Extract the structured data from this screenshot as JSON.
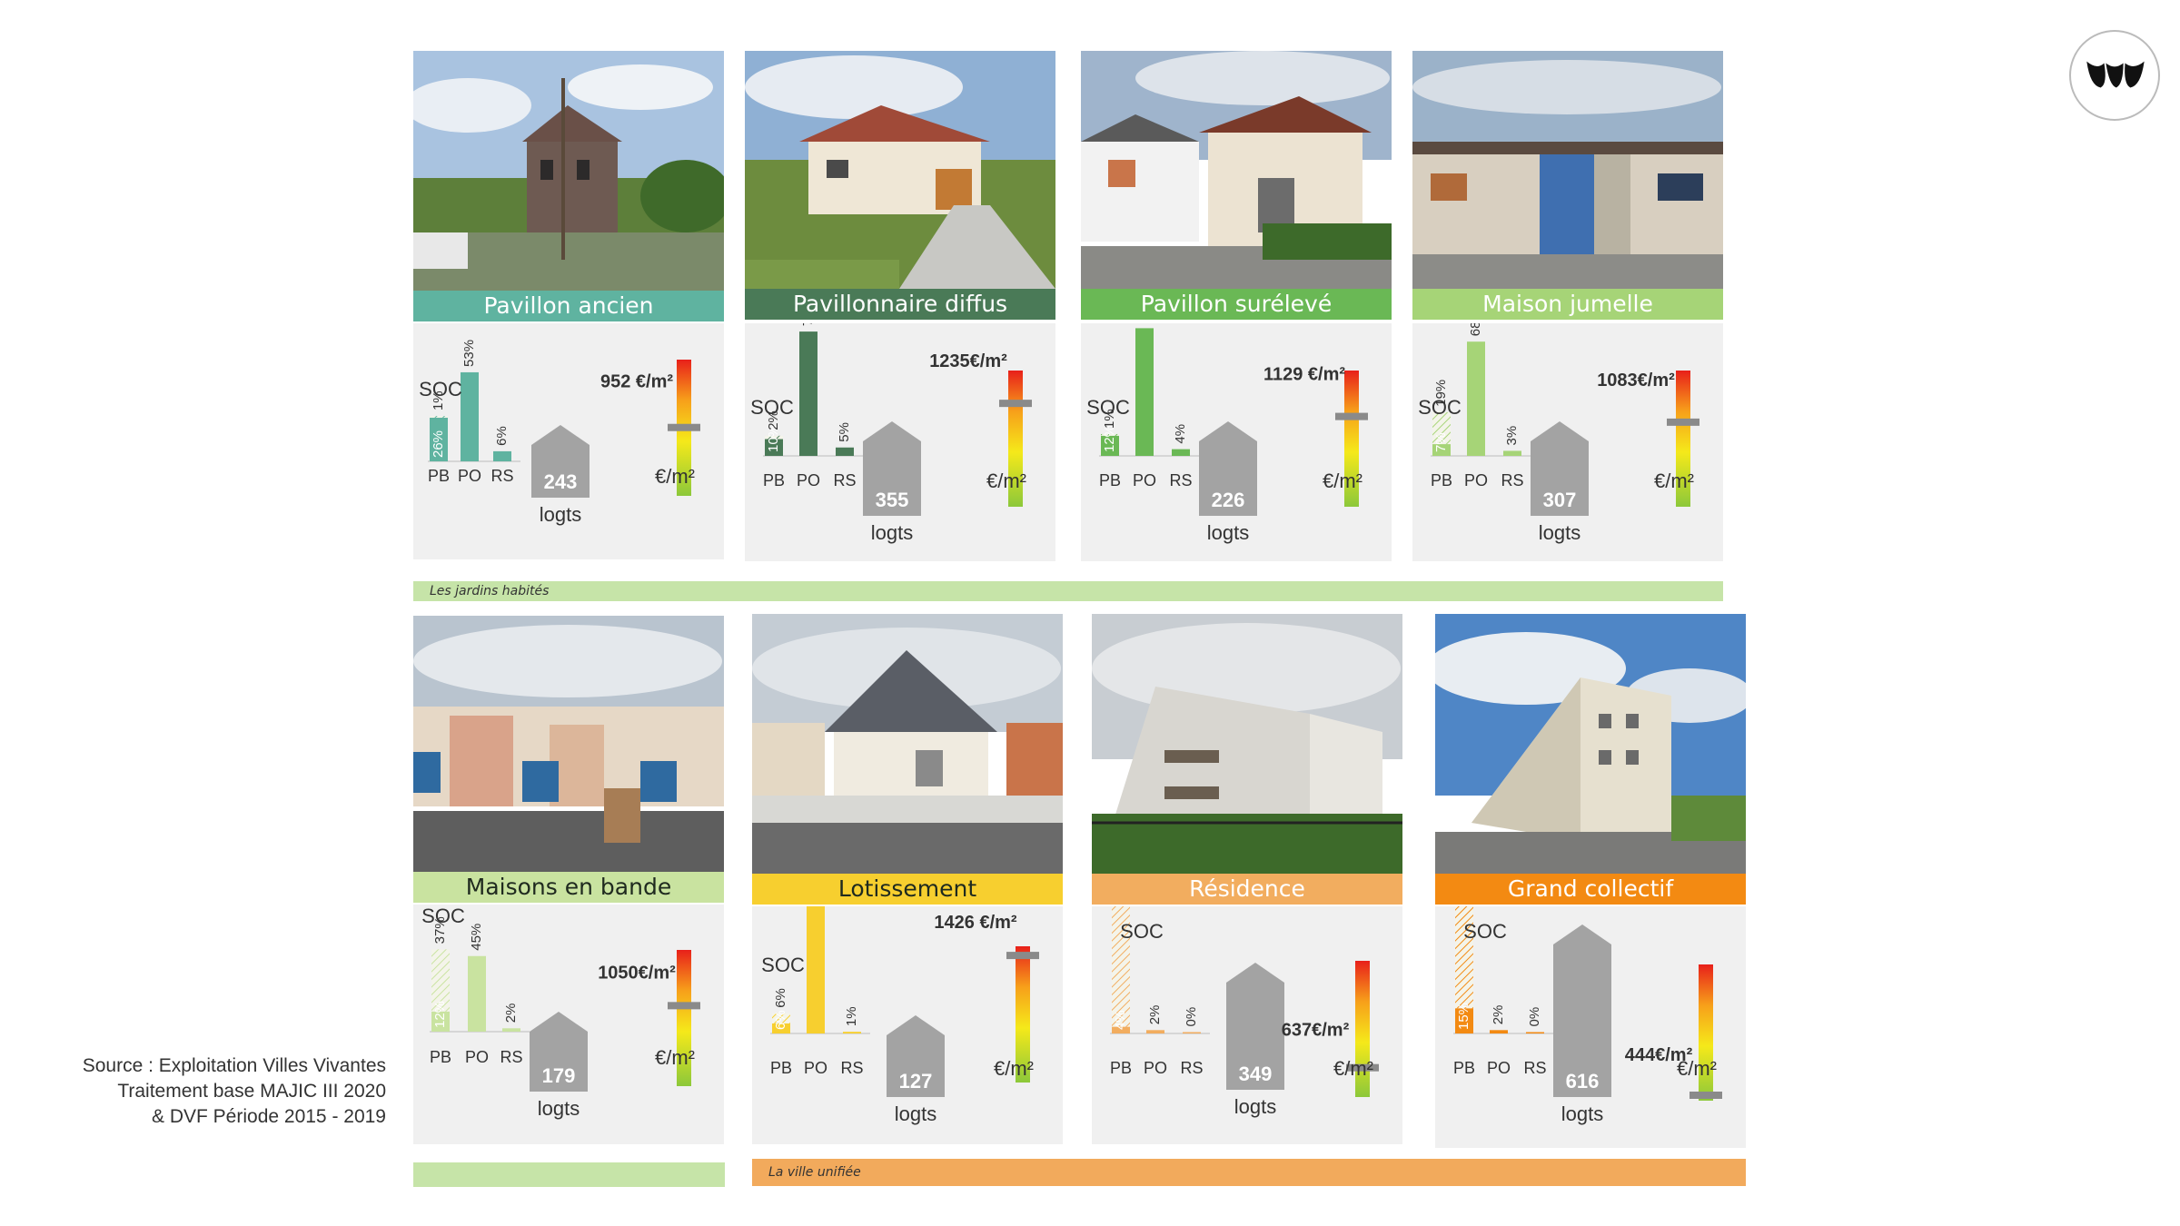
{
  "source": [
    "Source : Exploitation Villes Vivantes",
    "Traitement base MAJIC III 2020",
    "& DVF Période 2015 - 2019"
  ],
  "bands": {
    "jardins": "Les jardins habités",
    "ville": "La ville unifiée"
  },
  "labels": {
    "soc": "SOC",
    "pb": "PB",
    "po": "PO",
    "rs": "RS",
    "logts": "logts",
    "eurm2": "€/m²"
  },
  "colors": {
    "teal": "#5fb3a0",
    "dark_green": "#4a7a57",
    "green": "#6ab855",
    "light_green": "#a6d477",
    "pale_green": "#c9e3a0",
    "yellow": "#f7cf2f",
    "light_orange": "#f2ad5f",
    "orange": "#f38a12",
    "house_grey": "#a3a3a3",
    "panel_bg": "#f0f0f0",
    "band_green": "#c6e4a8",
    "band_orange": "#f2aa5c"
  },
  "chart_data": [
    {
      "type": "bar",
      "title": "Pavillon ancien",
      "categories": [
        "PB",
        "PO",
        "RS"
      ],
      "values": [
        26,
        53,
        6
      ],
      "pb_soc": 1,
      "logements": 243,
      "price_label": "952 €/m²",
      "price_eur_m2": 952
    },
    {
      "type": "bar",
      "title": "Pavillonnaire diffus",
      "categories": [
        "PB",
        "PO",
        "RS"
      ],
      "values": [
        10,
        74,
        5
      ],
      "pb_soc": 2,
      "logements": 355,
      "price_label": "1235€/m²",
      "price_eur_m2": 1235
    },
    {
      "type": "bar",
      "title": "Pavillon surélevé",
      "categories": [
        "PB",
        "PO",
        "RS"
      ],
      "values": [
        12,
        76,
        4
      ],
      "pb_soc": 1,
      "logements": 226,
      "price_label": "1129 €/m²",
      "price_eur_m2": 1129
    },
    {
      "type": "bar",
      "title": "Maison jumelle",
      "categories": [
        "PB",
        "PO",
        "RS"
      ],
      "values": [
        7,
        68,
        3
      ],
      "pb_soc": 19,
      "logements": 307,
      "price_label": "1083€/m²",
      "price_eur_m2": 1083
    },
    {
      "type": "bar",
      "title": "Maisons en bande",
      "categories": [
        "PB",
        "PO",
        "RS"
      ],
      "values": [
        12,
        45,
        2
      ],
      "pb_soc": 37,
      "logements": 179,
      "price_label": "1050€/m²",
      "price_eur_m2": 1050
    },
    {
      "type": "bar",
      "title": "Lotissement",
      "categories": [
        "PB",
        "PO",
        "RS"
      ],
      "values": [
        6,
        84,
        1
      ],
      "pb_soc": 6,
      "logements": 127,
      "price_label": "1426 €/m²",
      "price_eur_m2": 1426
    },
    {
      "type": "bar",
      "title": "Résidence",
      "categories": [
        "PB",
        "PO",
        "RS"
      ],
      "values": [
        4,
        2,
        0
      ],
      "pb_soc": 84,
      "logements": 349,
      "price_label": "637€/m²",
      "price_eur_m2": 637
    },
    {
      "type": "bar",
      "title": "Grand collectif",
      "categories": [
        "PB",
        "PO",
        "RS"
      ],
      "values": [
        15,
        2,
        0
      ],
      "pb_soc": 77,
      "logements": 616,
      "price_label": "444€/m²",
      "price_eur_m2": 444
    }
  ]
}
